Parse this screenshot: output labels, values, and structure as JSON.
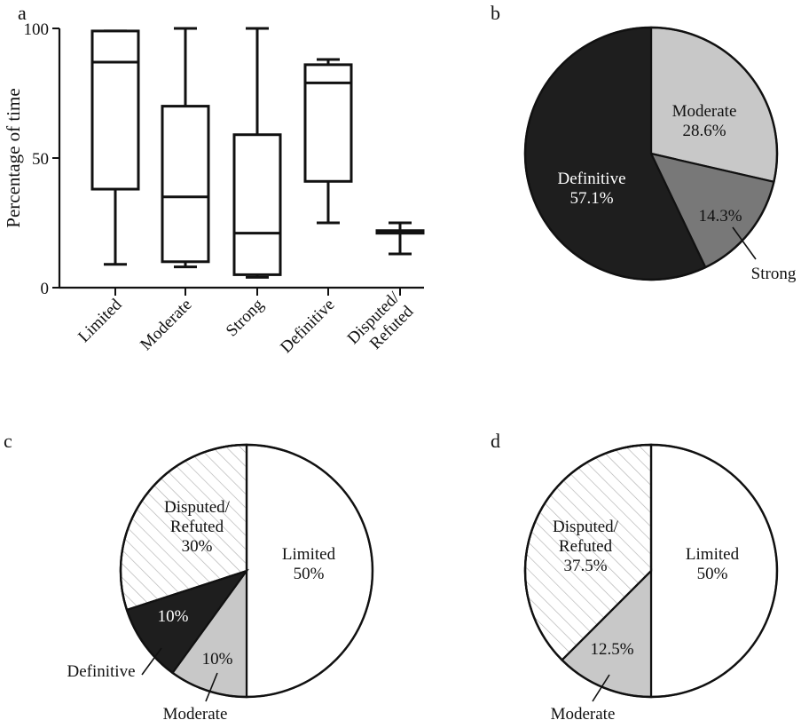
{
  "chart_data": [
    {
      "panel": "a",
      "type": "box",
      "title": "",
      "xlabel": "",
      "ylabel": "Percentage of time",
      "ylim": [
        0,
        100
      ],
      "yticks": [
        0,
        50,
        100
      ],
      "categories": [
        "Limited",
        "Moderate",
        "Strong",
        "Definitive",
        "Disputed/\nRefuted"
      ],
      "boxes": [
        {
          "min": 9,
          "q1": 38,
          "median": 87,
          "q3": 99,
          "max": 99
        },
        {
          "min": 8,
          "q1": 10,
          "median": 35,
          "q3": 70,
          "max": 100
        },
        {
          "min": 4,
          "q1": 5,
          "median": 21,
          "q3": 59,
          "max": 100
        },
        {
          "min": 25,
          "q1": 41,
          "median": 79,
          "q3": 86,
          "max": 88
        },
        {
          "min": 13,
          "q1": 21,
          "median": 21.5,
          "q3": 22,
          "max": 25
        }
      ]
    },
    {
      "panel": "b",
      "type": "pie",
      "slices": [
        {
          "label": "Moderate",
          "value_label": "28.6%",
          "value": 28.6,
          "color": "#c8c8c8",
          "pattern": "solid",
          "text_color": "#111111"
        },
        {
          "label": "Strong",
          "value_label": "14.3%",
          "value": 14.3,
          "color": "#787878",
          "pattern": "solid",
          "text_color": "#111111"
        },
        {
          "label": "Definitive",
          "value_label": "57.1%",
          "value": 57.1,
          "color": "#1e1e1e",
          "pattern": "solid",
          "text_color": "#ffffff"
        }
      ]
    },
    {
      "panel": "c",
      "type": "pie",
      "slices": [
        {
          "label": "Limited",
          "value_label": "50%",
          "value": 50,
          "color": "#ffffff",
          "pattern": "solid",
          "text_color": "#111111"
        },
        {
          "label": "Moderate",
          "value_label": "10%",
          "value": 10,
          "color": "#c8c8c8",
          "pattern": "solid",
          "text_color": "#111111"
        },
        {
          "label": "Definitive",
          "value_label": "10%",
          "value": 10,
          "color": "#1e1e1e",
          "pattern": "solid",
          "text_color": "#ffffff"
        },
        {
          "label": "Disputed/\nRefuted",
          "value_label": "30%",
          "value": 30,
          "color": "#ffffff",
          "pattern": "hatch",
          "text_color": "#111111"
        }
      ]
    },
    {
      "panel": "d",
      "type": "pie",
      "slices": [
        {
          "label": "Limited",
          "value_label": "50%",
          "value": 50,
          "color": "#ffffff",
          "pattern": "solid",
          "text_color": "#111111"
        },
        {
          "label": "Moderate",
          "value_label": "12.5%",
          "value": 12.5,
          "color": "#c8c8c8",
          "pattern": "solid",
          "text_color": "#111111"
        },
        {
          "label": "Disputed/\nRefuted",
          "value_label": "37.5%",
          "value": 37.5,
          "color": "#ffffff",
          "pattern": "hatch",
          "text_color": "#111111"
        }
      ]
    }
  ]
}
